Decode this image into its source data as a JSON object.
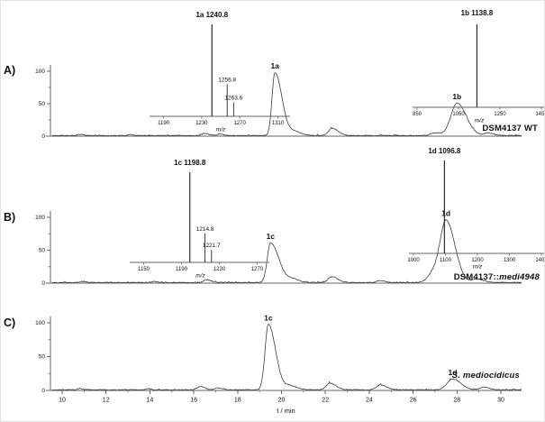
{
  "figure": {
    "xlabel": "t / min",
    "background": "#ffffff",
    "colors": {
      "axis": "#666666",
      "trace": "#3d3d3d",
      "text": "#111111",
      "ms_peak": "#2a2a2a"
    }
  },
  "chart_data": [
    {
      "type": "line",
      "panel_label": "A)",
      "title": "DSM4137 WT",
      "xlabel": "t / min",
      "xlim": [
        9.5,
        31
      ],
      "ylim": [
        0,
        100
      ],
      "x_ticks": [
        10,
        12,
        14,
        16,
        18,
        20,
        22,
        24,
        26,
        28,
        30
      ],
      "y_ticks": [
        0,
        50,
        100
      ],
      "peaks": [
        {
          "t": 10.8,
          "intensity": 2,
          "wl": 0.1,
          "wr": 0.15
        },
        {
          "t": 13.1,
          "intensity": 1.5,
          "wl": 0.1,
          "wr": 0.15
        },
        {
          "t": 16.5,
          "intensity": 3,
          "wl": 0.12,
          "wr": 0.2
        },
        {
          "t": 17.2,
          "intensity": 2,
          "wl": 0.12,
          "wr": 0.18
        },
        {
          "t": 19.7,
          "intensity": 97,
          "wl": 0.13,
          "wr": 0.32,
          "label": "1a"
        },
        {
          "t": 20.6,
          "intensity": 6,
          "wl": 0.2,
          "wr": 0.3
        },
        {
          "t": 22.3,
          "intensity": 11,
          "wl": 0.16,
          "wr": 0.28
        },
        {
          "t": 27.0,
          "intensity": 4,
          "wl": 0.2,
          "wr": 0.25
        },
        {
          "t": 28.0,
          "intensity": 50,
          "wl": 0.28,
          "wr": 0.42,
          "label": "1b"
        },
        {
          "t": 29.4,
          "intensity": 4,
          "wl": 0.15,
          "wr": 0.25
        }
      ],
      "insets": [
        {
          "type": "mass-spectrum",
          "xlabel": "m/z",
          "xlim": [
            1180,
            1320
          ],
          "x_ticks": [
            1190,
            1230,
            1270,
            1310
          ],
          "peaks": [
            {
              "mz": 1240.8,
              "intensity": 100,
              "compound": "1a",
              "label": "1240.8"
            },
            {
              "mz": 1256.8,
              "intensity": 35,
              "label": "1256.8"
            },
            {
              "mz": 1263.6,
              "intensity": 15,
              "label": "1263.6"
            }
          ]
        },
        {
          "type": "mass-spectrum",
          "xlabel": "m/z",
          "xlim": [
            850,
            1450
          ],
          "x_ticks": [
            850,
            1050,
            1250,
            1450
          ],
          "peaks": [
            {
              "mz": 1138.8,
              "intensity": 100,
              "compound": "1b",
              "label": "1138.8"
            }
          ]
        }
      ]
    },
    {
      "type": "line",
      "panel_label": "B)",
      "title": "DSM4137::medi4948",
      "title_parts": [
        {
          "text": "DSM4137::",
          "italic": false
        },
        {
          "text": "medi4948",
          "italic": true
        }
      ],
      "xlabel": "t / min",
      "xlim": [
        9.5,
        31
      ],
      "ylim": [
        0,
        100
      ],
      "x_ticks": [
        10,
        12,
        14,
        16,
        18,
        20,
        22,
        24,
        26,
        28,
        30
      ],
      "y_ticks": [
        0,
        50,
        100
      ],
      "peaks": [
        {
          "t": 10.9,
          "intensity": 1.5,
          "wl": 0.1,
          "wr": 0.15
        },
        {
          "t": 14.2,
          "intensity": 1.5,
          "wl": 0.1,
          "wr": 0.15
        },
        {
          "t": 16.6,
          "intensity": 4,
          "wl": 0.14,
          "wr": 0.2
        },
        {
          "t": 19.5,
          "intensity": 60,
          "wl": 0.15,
          "wr": 0.38,
          "label": "1c"
        },
        {
          "t": 20.5,
          "intensity": 5,
          "wl": 0.2,
          "wr": 0.3
        },
        {
          "t": 22.3,
          "intensity": 9,
          "wl": 0.16,
          "wr": 0.26
        },
        {
          "t": 24.5,
          "intensity": 3,
          "wl": 0.15,
          "wr": 0.2
        },
        {
          "t": 26.9,
          "intensity": 12,
          "wl": 0.25,
          "wr": 0.2
        },
        {
          "t": 27.5,
          "intensity": 95,
          "wl": 0.28,
          "wr": 0.4,
          "label": "1d"
        },
        {
          "t": 28.9,
          "intensity": 5,
          "wl": 0.2,
          "wr": 0.3
        }
      ],
      "insets": [
        {
          "type": "mass-spectrum",
          "xlabel": "m/z",
          "xlim": [
            1140,
            1280
          ],
          "x_ticks": [
            1150,
            1190,
            1230,
            1270
          ],
          "peaks": [
            {
              "mz": 1198.8,
              "intensity": 100,
              "compound": "1c",
              "label": "1198.8"
            },
            {
              "mz": 1214.8,
              "intensity": 32,
              "label": "1214.8"
            },
            {
              "mz": 1221.7,
              "intensity": 14,
              "label": "1221.7"
            }
          ]
        },
        {
          "type": "mass-spectrum",
          "xlabel": "m/z",
          "xlim": [
            1000,
            1400
          ],
          "x_ticks": [
            1000,
            1100,
            1200,
            1300,
            1400
          ],
          "peaks": [
            {
              "mz": 1096.8,
              "intensity": 100,
              "compound": "1d",
              "label": "1096.8"
            }
          ]
        }
      ]
    },
    {
      "type": "line",
      "panel_label": "C)",
      "title": "S. mediocidicus",
      "xlabel": "t / min",
      "xlim": [
        9.5,
        31
      ],
      "ylim": [
        0,
        100
      ],
      "x_ticks": [
        10,
        12,
        14,
        16,
        18,
        20,
        22,
        24,
        26,
        28,
        30
      ],
      "y_ticks": [
        0,
        50,
        100
      ],
      "peaks": [
        {
          "t": 10.8,
          "intensity": 2,
          "wl": 0.1,
          "wr": 0.15
        },
        {
          "t": 13.9,
          "intensity": 1.5,
          "wl": 0.1,
          "wr": 0.15
        },
        {
          "t": 16.3,
          "intensity": 5,
          "wl": 0.13,
          "wr": 0.2
        },
        {
          "t": 17.1,
          "intensity": 3,
          "wl": 0.12,
          "wr": 0.18
        },
        {
          "t": 19.4,
          "intensity": 97,
          "wl": 0.15,
          "wr": 0.33,
          "label": "1c"
        },
        {
          "t": 20.4,
          "intensity": 6,
          "wl": 0.2,
          "wr": 0.3
        },
        {
          "t": 22.2,
          "intensity": 10,
          "wl": 0.16,
          "wr": 0.28
        },
        {
          "t": 24.5,
          "intensity": 7,
          "wl": 0.18,
          "wr": 0.28
        },
        {
          "t": 27.8,
          "intensity": 16,
          "wl": 0.25,
          "wr": 0.38,
          "label": "1d"
        },
        {
          "t": 29.2,
          "intensity": 4,
          "wl": 0.15,
          "wr": 0.25
        }
      ],
      "insets": []
    }
  ]
}
